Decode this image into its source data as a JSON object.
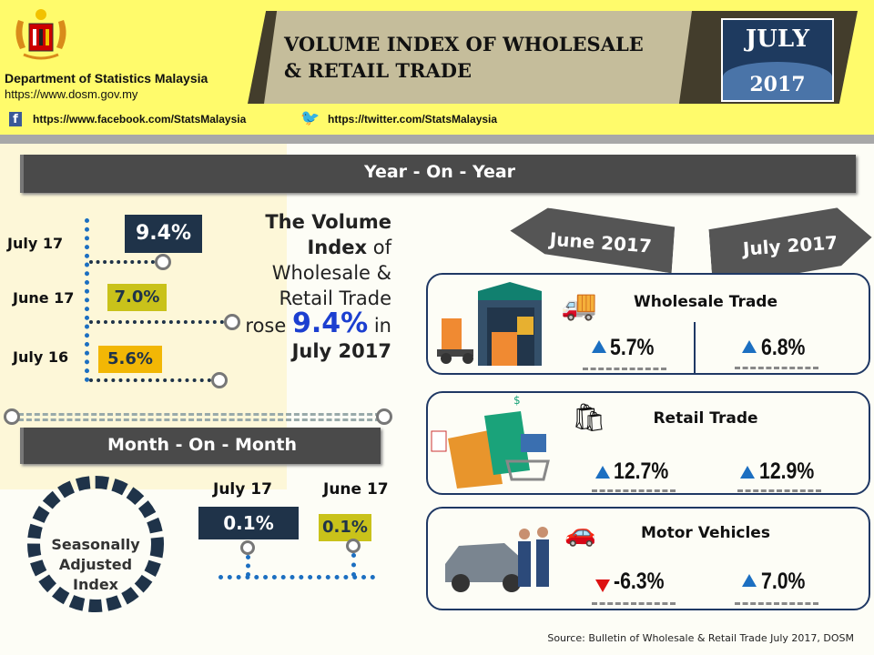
{
  "header": {
    "department": "Department of Statistics Malaysia",
    "website": "https://www.dosm.gov.my",
    "facebook": "https://www.facebook.com/StatsMalaysia",
    "twitter": "https://twitter.com/StatsMalaysia",
    "title_line1": "VOLUME INDEX OF WHOLESALE",
    "title_line2": "& RETAIL TRADE",
    "month": "JULY",
    "year": "2017"
  },
  "yoy": {
    "banner": "Year - On - Year",
    "rows": [
      {
        "label": "July 17",
        "value": "9.4%"
      },
      {
        "label": "June 17",
        "value": "7.0%"
      },
      {
        "label": "July 16",
        "value": "5.6%"
      }
    ],
    "text": {
      "l1": "The Volume",
      "l2a": "Index",
      "l2b": " of",
      "l3": "Wholesale &",
      "l4": "Retail Trade",
      "l5a": "rose ",
      "l5b": "9.4%",
      "l5c": " in",
      "l6": "July 2017"
    }
  },
  "mom": {
    "banner": "Month - On - Month",
    "ring_l1": "Seasonally",
    "ring_l2": "Adjusted",
    "ring_l3": "Index",
    "cols": [
      {
        "label": "July 17",
        "value": "0.1%"
      },
      {
        "label": "June 17",
        "value": "0.1%"
      }
    ]
  },
  "periods": {
    "left": "June 2017",
    "right": "July 2017"
  },
  "cards": [
    {
      "title": "Wholesale Trade",
      "june": "5.7%",
      "june_dir": "up",
      "july": "6.8%",
      "july_dir": "up"
    },
    {
      "title": "Retail Trade",
      "june": "12.7%",
      "june_dir": "up",
      "july": "12.9%",
      "july_dir": "up"
    },
    {
      "title": "Motor Vehicles",
      "june": "-6.3%",
      "june_dir": "down",
      "july": "7.0%",
      "july_dir": "up"
    }
  ],
  "colors": {
    "navy": "#1f3349",
    "olive": "#c9c21a",
    "orange": "#f2b705",
    "blue": "#1c6fc1"
  },
  "source": "Source: Bulletin of Wholesale & Retail Trade July 2017, DOSM"
}
